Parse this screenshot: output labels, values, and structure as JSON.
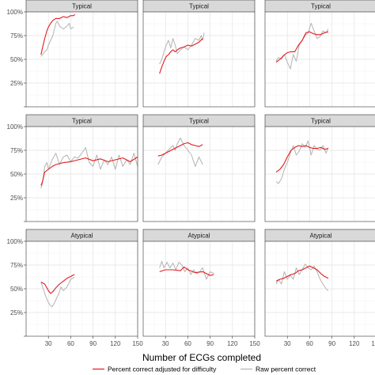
{
  "chart_data": {
    "type": "line",
    "xlabel": "Number of ECGs completed",
    "ylabel": "",
    "x_ticks": [
      30,
      60,
      90,
      120,
      150
    ],
    "y_ticks": [
      "25%",
      "50%",
      "75%",
      "100%"
    ],
    "y_tick_values": [
      25,
      50,
      75,
      100
    ],
    "xlim": [
      0,
      150
    ],
    "ylim": [
      0,
      100
    ],
    "grid": true,
    "legend_position": "bottom",
    "legend": [
      {
        "key": "adjusted",
        "label": "Percent correct adjusted for difficulty",
        "color": "#e41a1c"
      },
      {
        "key": "raw",
        "label": "Raw percent correct",
        "color": "#b3b3b3"
      }
    ],
    "panels": [
      {
        "strip": "Typical",
        "series": [
          {
            "key": "adjusted",
            "x": [
              20,
              22,
              25,
              28,
              30,
              33,
              36,
              40,
              45,
              50,
              55,
              60,
              63,
              66
            ],
            "y": [
              55,
              62,
              72,
              80,
              84,
              88,
              91,
              93,
              93,
              95,
              94,
              96,
              96,
              97
            ]
          },
          {
            "key": "raw",
            "x": [
              20,
              22,
              25,
              28,
              30,
              33,
              36,
              40,
              42,
              45,
              50,
              55,
              58,
              60,
              64
            ],
            "y": [
              53,
              55,
              58,
              60,
              65,
              70,
              75,
              88,
              90,
              85,
              82,
              85,
              88,
              82,
              84
            ]
          }
        ]
      },
      {
        "strip": "Typical",
        "series": [
          {
            "key": "adjusted",
            "x": [
              22,
              25,
              28,
              31,
              34,
              37,
              40,
              43,
              46,
              50,
              55,
              60,
              65,
              70,
              75,
              80
            ],
            "y": [
              35,
              42,
              48,
              53,
              55,
              58,
              60,
              58,
              60,
              62,
              63,
              65,
              64,
              66,
              68,
              72
            ]
          },
          {
            "key": "raw",
            "x": [
              22,
              25,
              28,
              31,
              34,
              37,
              40,
              43,
              46,
              50,
              55,
              60,
              65,
              70,
              75,
              78,
              80,
              82
            ],
            "y": [
              45,
              50,
              58,
              65,
              70,
              62,
              72,
              65,
              56,
              60,
              63,
              60,
              65,
              72,
              70,
              75,
              70,
              78
            ]
          }
        ]
      },
      {
        "strip": "Typical",
        "series": [
          {
            "key": "adjusted",
            "x": [
              15,
              20,
              25,
              30,
              35,
              40,
              45,
              50,
              55,
              60,
              65,
              70,
              75,
              80,
              85
            ],
            "y": [
              47,
              50,
              54,
              57,
              58,
              58,
              65,
              70,
              78,
              79,
              77,
              76,
              76,
              78,
              79
            ]
          },
          {
            "key": "raw",
            "x": [
              15,
              18,
              22,
              26,
              30,
              34,
              38,
              42,
              46,
              50,
              54,
              58,
              62,
              66,
              70,
              74,
              78,
              82,
              85
            ],
            "y": [
              48,
              52,
              50,
              55,
              47,
              40,
              55,
              48,
              65,
              70,
              75,
              78,
              88,
              80,
              72,
              74,
              80,
              78,
              82
            ]
          }
        ]
      },
      {
        "strip": "Typical",
        "series": [
          {
            "key": "adjusted",
            "x": [
              20,
              22,
              25,
              30,
              35,
              40,
              50,
              60,
              70,
              80,
              90,
              100,
              110,
              120,
              130,
              140,
              150
            ],
            "y": [
              38,
              42,
              52,
              55,
              58,
              60,
              62,
              63,
              65,
              67,
              64,
              66,
              63,
              65,
              67,
              63,
              68
            ]
          },
          {
            "key": "raw",
            "x": [
              20,
              22,
              25,
              28,
              30,
              35,
              40,
              45,
              50,
              55,
              60,
              65,
              70,
              75,
              80,
              85,
              90,
              95,
              100,
              105,
              110,
              115,
              120,
              125,
              130,
              135,
              140,
              145,
              150
            ],
            "y": [
              35,
              40,
              58,
              62,
              55,
              65,
              72,
              60,
              68,
              70,
              63,
              68,
              67,
              72,
              78,
              62,
              58,
              70,
              55,
              65,
              60,
              68,
              55,
              70,
              58,
              65,
              60,
              72,
              58
            ]
          }
        ]
      },
      {
        "strip": "Typical",
        "series": [
          {
            "key": "adjusted",
            "x": [
              20,
              25,
              30,
              35,
              40,
              45,
              50,
              55,
              60,
              65,
              70,
              75,
              80
            ],
            "y": [
              69,
              70,
              72,
              74,
              76,
              78,
              80,
              82,
              83,
              81,
              80,
              79,
              81
            ]
          },
          {
            "key": "raw",
            "x": [
              20,
              25,
              30,
              35,
              40,
              43,
              46,
              50,
              55,
              60,
              65,
              70,
              75,
              80
            ],
            "y": [
              60,
              68,
              72,
              76,
              80,
              75,
              82,
              88,
              80,
              75,
              70,
              58,
              68,
              60
            ]
          }
        ]
      },
      {
        "strip": "Typical",
        "series": [
          {
            "key": "adjusted",
            "x": [
              15,
              20,
              25,
              30,
              35,
              40,
              45,
              50,
              55,
              60,
              65,
              70,
              75,
              80,
              85
            ],
            "y": [
              52,
              55,
              60,
              68,
              75,
              78,
              80,
              79,
              80,
              78,
              77,
              77,
              78,
              76,
              77
            ]
          },
          {
            "key": "raw",
            "x": [
              15,
              18,
              22,
              26,
              30,
              34,
              38,
              42,
              46,
              50,
              54,
              58,
              62,
              66,
              70,
              74,
              78,
              82,
              85
            ],
            "y": [
              42,
              40,
              45,
              55,
              62,
              72,
              80,
              70,
              74,
              82,
              78,
              85,
              70,
              80,
              76,
              75,
              80,
              72,
              78
            ]
          }
        ]
      },
      {
        "strip": "Atypical",
        "series": [
          {
            "key": "adjusted",
            "x": [
              20,
              25,
              30,
              33,
              36,
              40,
              45,
              50,
              55,
              60,
              65
            ],
            "y": [
              57,
              55,
              48,
              45,
              47,
              51,
              55,
              58,
              61,
              63,
              65
            ]
          },
          {
            "key": "raw",
            "x": [
              20,
              23,
              26,
              29,
              32,
              35,
              38,
              41,
              44,
              47,
              50,
              55,
              60,
              65
            ],
            "y": [
              57,
              50,
              43,
              37,
              33,
              31,
              35,
              40,
              45,
              52,
              48,
              52,
              60,
              62
            ]
          }
        ]
      },
      {
        "strip": "Atypical",
        "series": [
          {
            "key": "adjusted",
            "x": [
              22,
              30,
              40,
              50,
              55,
              60,
              70,
              80,
              90,
              95
            ],
            "y": [
              68,
              70,
              70,
              69,
              73,
              70,
              67,
              68,
              64,
              65
            ]
          },
          {
            "key": "raw",
            "x": [
              22,
              25,
              28,
              32,
              36,
              40,
              44,
              48,
              52,
              56,
              60,
              64,
              68,
              72,
              76,
              80,
              85,
              90,
              95
            ],
            "y": [
              72,
              79,
              72,
              78,
              72,
              77,
              70,
              78,
              75,
              68,
              72,
              65,
              70,
              66,
              68,
              72,
              60,
              68,
              66
            ]
          }
        ]
      },
      {
        "strip": "Atypical",
        "series": [
          {
            "key": "adjusted",
            "x": [
              15,
              20,
              25,
              30,
              35,
              40,
              45,
              50,
              55,
              60,
              65,
              70,
              75,
              80,
              85
            ],
            "y": [
              58,
              60,
              61,
              63,
              65,
              66,
              69,
              70,
              72,
              74,
              72,
              70,
              66,
              63,
              61
            ]
          },
          {
            "key": "raw",
            "x": [
              15,
              18,
              22,
              26,
              30,
              34,
              38,
              42,
              46,
              50,
              54,
              58,
              62,
              66,
              70,
              74,
              78,
              82,
              85
            ],
            "y": [
              55,
              60,
              55,
              68,
              60,
              64,
              60,
              72,
              65,
              70,
              76,
              72,
              70,
              74,
              68,
              60,
              55,
              50,
              48
            ]
          }
        ]
      }
    ]
  }
}
